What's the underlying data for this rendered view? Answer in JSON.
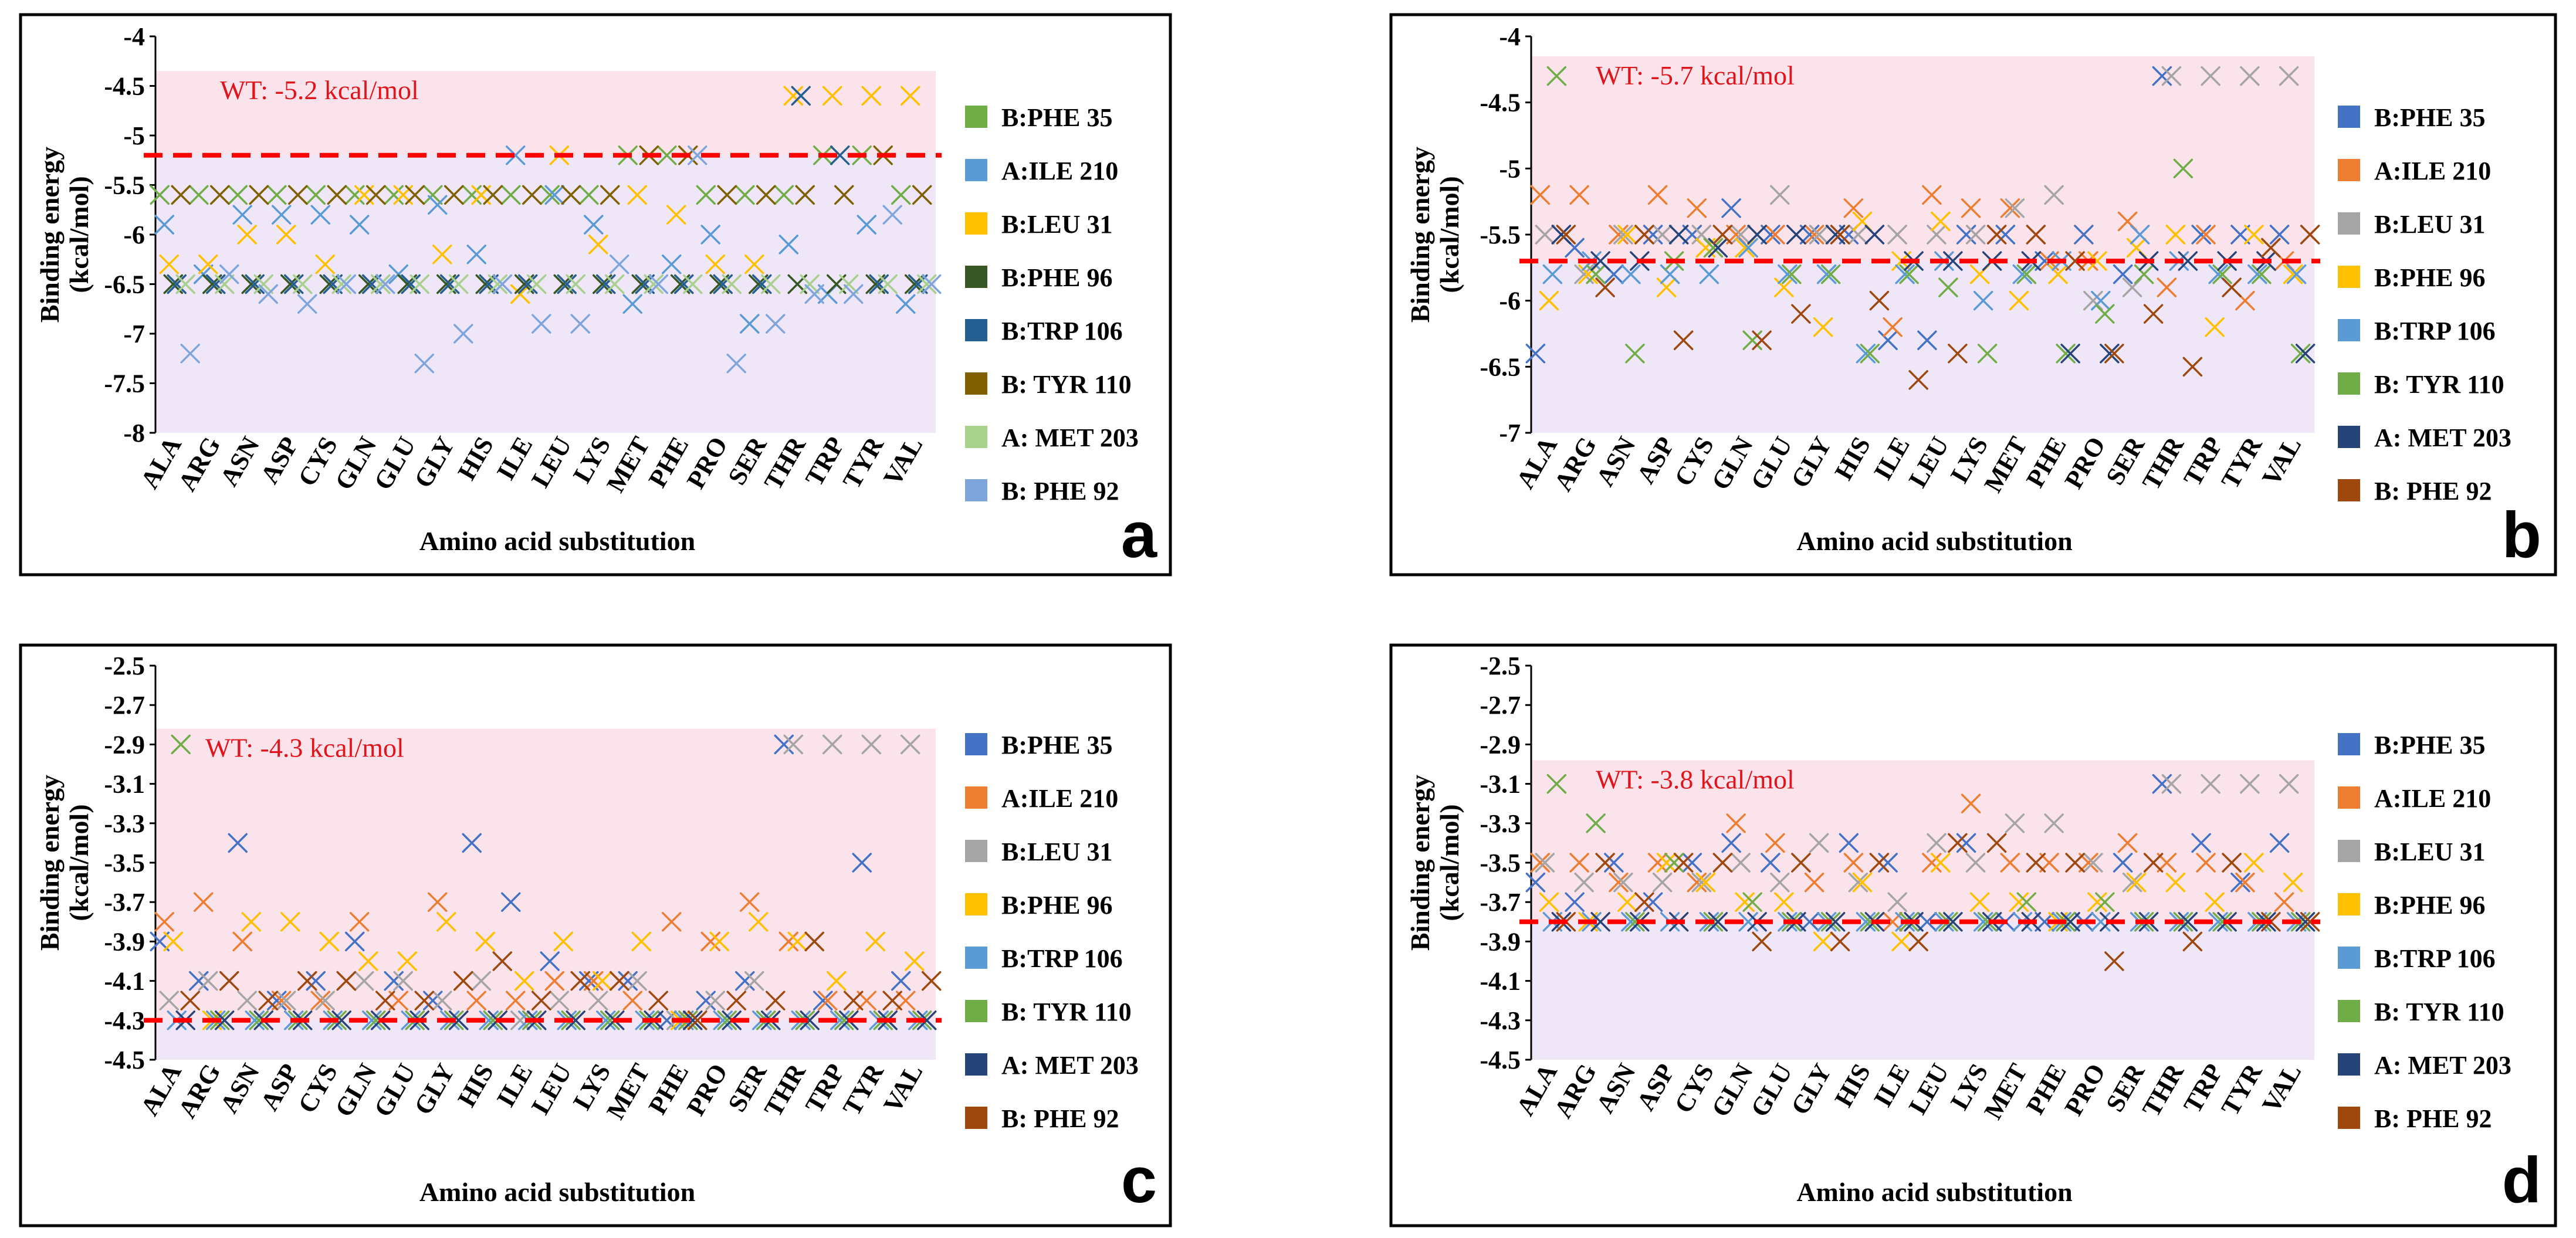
{
  "colors": {
    "band_upper": "#fbe3ec",
    "band_lower": "#efe6f8",
    "wt_line": "#ff0000",
    "wt_text": "#e0141b"
  },
  "series_styles": {
    "set1": [
      "#70ad47",
      "#5b9bd5",
      "#ffc000",
      "#375623",
      "#255e91",
      "#806000",
      "#a9d18e",
      "#7fa6dc"
    ],
    "set2": [
      "#4472c4",
      "#ed7d31",
      "#a5a5a5",
      "#ffc000",
      "#5b9bd5",
      "#70ad47",
      "#264478",
      "#9e480e"
    ]
  },
  "chart_data": [
    {
      "id": "a",
      "type": "scatter",
      "panel_label": "a",
      "xlabel": "Amino acid substitution",
      "ylabel": [
        "Binding energy",
        "(kcal/mol)"
      ],
      "ylim": [
        -8,
        -4
      ],
      "yticks": [
        -4,
        -4.5,
        -5,
        -5.5,
        -6,
        -6.5,
        -7,
        -7.5,
        -8
      ],
      "wt_value": -5.2,
      "wt_label": "WT: -5.2 kcal/mol",
      "band_upper": [
        -5.2,
        -4.35
      ],
      "band_lower": [
        -8,
        -5.2
      ],
      "palette": "set1",
      "categories": [
        "ALA",
        "ARG",
        "ASN",
        "ASP",
        "CYS",
        "GLN",
        "GLU",
        "GLY",
        "HIS",
        "ILE",
        "LEU",
        "LYS",
        "MET",
        "PHE",
        "PRO",
        "SER",
        "THR",
        "TRP",
        "TYR",
        "VAL"
      ],
      "series": [
        {
          "name": "B:PHE 35",
          "values": [
            -5.6,
            -5.6,
            -5.6,
            -5.6,
            -5.6,
            -5.6,
            -5.6,
            -5.6,
            -5.6,
            -5.6,
            -5.6,
            -5.6,
            -5.2,
            -5.2,
            -5.6,
            -5.6,
            -5.6,
            -5.2,
            -5.2,
            -5.6
          ]
        },
        {
          "name": "A:ILE 210",
          "values": [
            -5.9,
            -6.4,
            -5.8,
            -5.8,
            -5.8,
            -5.9,
            -6.4,
            -5.7,
            -6.2,
            -5.2,
            -5.6,
            -5.9,
            -6.7,
            -6.3,
            -6.0,
            -6.9,
            -6.1,
            -6.6,
            -5.9,
            -6.7
          ]
        },
        {
          "name": "B:LEU 31",
          "values": [
            -6.3,
            -6.3,
            -6.0,
            -6.0,
            -6.3,
            -5.6,
            -5.6,
            -6.2,
            -5.6,
            -6.6,
            -5.2,
            -6.1,
            -5.6,
            -5.8,
            -6.3,
            -6.3,
            -4.6,
            -4.6,
            -4.6,
            -4.6
          ]
        },
        {
          "name": "B:PHE 96",
          "values": [
            -6.5,
            -6.5,
            -6.5,
            -6.5,
            -6.5,
            -6.5,
            -6.5,
            -6.5,
            -6.5,
            -6.5,
            -6.5,
            -6.5,
            -6.5,
            -6.5,
            -6.5,
            -6.5,
            -6.5,
            -6.5,
            -6.5,
            -6.5
          ]
        },
        {
          "name": "B:TRP 106",
          "values": [
            -6.5,
            -6.5,
            -6.5,
            -6.5,
            -6.5,
            -6.5,
            -6.5,
            -6.5,
            -6.5,
            -6.5,
            -6.5,
            -6.5,
            -6.5,
            -6.5,
            -6.5,
            -6.5,
            -4.6,
            -5.2,
            -6.5,
            -6.5
          ]
        },
        {
          "name": "B: TYR 110",
          "values": [
            -5.6,
            -5.6,
            -5.6,
            -5.6,
            -5.6,
            -5.6,
            -5.6,
            -5.6,
            -5.6,
            -5.6,
            -5.6,
            -5.6,
            -5.2,
            -5.2,
            -5.6,
            -5.6,
            -5.6,
            -5.6,
            -5.2,
            -5.6
          ]
        },
        {
          "name": "A: MET 203",
          "values": [
            -6.5,
            -6.5,
            -6.5,
            -6.5,
            -6.5,
            -6.5,
            -6.5,
            -6.5,
            -6.5,
            -6.5,
            -6.5,
            -6.5,
            -6.5,
            -6.5,
            -6.5,
            -6.5,
            -6.5,
            -6.5,
            -6.5,
            -6.5
          ]
        },
        {
          "name": "B: PHE 92",
          "values": [
            -7.2,
            -6.4,
            -6.6,
            -6.7,
            -6.5,
            -6.5,
            -7.3,
            -7.0,
            -6.5,
            -6.9,
            -6.9,
            -6.3,
            -6.5,
            -5.2,
            -7.3,
            -6.9,
            -6.6,
            -6.6,
            -5.8,
            -6.5
          ]
        }
      ]
    },
    {
      "id": "b",
      "type": "scatter",
      "panel_label": "b",
      "xlabel": "Amino acid substitution",
      "ylabel": [
        "Binding energy",
        "(kcal/mol)"
      ],
      "ylim": [
        -7,
        -4
      ],
      "yticks": [
        -4,
        -4.5,
        -5,
        -5.5,
        -6,
        -6.5,
        -7
      ],
      "wt_value": -5.7,
      "wt_label": "WT: -5.7 kcal/mol",
      "band_upper": [
        -5.7,
        -4.15
      ],
      "band_lower": [
        -7,
        -5.7
      ],
      "palette": "set2",
      "categories": [
        "ALA",
        "ARG",
        "ASN",
        "ASP",
        "CYS",
        "GLN",
        "GLU",
        "GLY",
        "HIS",
        "ILE",
        "LEU",
        "LYS",
        "MET",
        "PHE",
        "PRO",
        "SER",
        "THR",
        "TRP",
        "TYR",
        "VAL"
      ],
      "series": [
        {
          "name": "B:PHE 35",
          "values": [
            -6.4,
            -5.6,
            -5.8,
            -5.5,
            -5.5,
            -5.3,
            -5.5,
            -5.5,
            -5.5,
            -6.3,
            -6.3,
            -5.5,
            -5.5,
            -5.7,
            -5.5,
            -5.8,
            -4.3,
            -5.5,
            -5.5,
            -5.5
          ]
        },
        {
          "name": "A:ILE 210",
          "values": [
            -5.2,
            -5.2,
            -5.5,
            -5.2,
            -5.3,
            -5.5,
            -5.5,
            -5.5,
            -5.3,
            -6.2,
            -5.2,
            -5.3,
            -5.3,
            -5.7,
            -5.7,
            -5.4,
            -5.9,
            -5.5,
            -6.0,
            -5.7
          ]
        },
        {
          "name": "B:LEU 31",
          "values": [
            -5.5,
            -5.8,
            -5.5,
            -5.5,
            -5.5,
            -5.5,
            -5.2,
            -5.5,
            -5.5,
            -5.5,
            -5.5,
            -5.5,
            -5.3,
            -5.2,
            -6.0,
            -5.9,
            -4.3,
            -4.3,
            -4.3,
            -4.3
          ]
        },
        {
          "name": "B:PHE 96",
          "values": [
            -6.0,
            -5.8,
            -5.5,
            -5.9,
            -5.6,
            -5.6,
            -5.9,
            -6.2,
            -5.4,
            -5.7,
            -5.4,
            -5.8,
            -6.0,
            -5.8,
            -5.7,
            -5.6,
            -5.5,
            -6.2,
            -5.5,
            -5.8
          ]
        },
        {
          "name": "B:TRP 106",
          "values": [
            -5.8,
            -5.7,
            -5.8,
            -5.8,
            -5.8,
            -5.6,
            -5.8,
            -5.8,
            -6.4,
            -5.8,
            -5.7,
            -6.0,
            -5.8,
            -5.7,
            -6.0,
            -5.5,
            -5.7,
            -5.8,
            -5.8,
            -5.8
          ]
        },
        {
          "name": "B: TYR 110",
          "values": [
            -4.3,
            -5.8,
            -6.4,
            -5.7,
            -5.6,
            -6.3,
            -5.8,
            -5.8,
            -6.4,
            -5.8,
            -5.9,
            -6.4,
            -5.8,
            -6.4,
            -6.1,
            -5.8,
            -5.0,
            -5.8,
            -5.8,
            -6.4
          ]
        },
        {
          "name": "A: MET 203",
          "values": [
            -5.5,
            -5.7,
            -5.7,
            -5.5,
            -5.6,
            -5.5,
            -5.5,
            -5.5,
            -5.5,
            -5.7,
            -5.7,
            -5.7,
            -5.7,
            -6.4,
            -6.4,
            -5.7,
            -5.7,
            -5.7,
            -5.7,
            -6.4
          ]
        },
        {
          "name": "B: PHE 92",
          "values": [
            -5.5,
            -5.9,
            -5.5,
            -6.3,
            -5.5,
            -6.3,
            -6.1,
            -5.5,
            -6.0,
            -6.6,
            -6.4,
            -5.5,
            -5.5,
            -5.7,
            -6.4,
            -6.1,
            -6.5,
            -5.9,
            -5.6,
            -5.5
          ]
        }
      ]
    },
    {
      "id": "c",
      "type": "scatter",
      "panel_label": "c",
      "xlabel": "Amino acid substitution",
      "ylabel": [
        "Binding energy",
        "(kcal/mol)"
      ],
      "ylim": [
        -4.5,
        -2.5
      ],
      "yticks": [
        -2.5,
        -2.7,
        -2.9,
        -3.1,
        -3.3,
        -3.5,
        -3.7,
        -3.9,
        -4.1,
        -4.3,
        -4.5
      ],
      "wt_value": -4.3,
      "wt_label": "WT: -4.3 kcal/mol",
      "band_upper": [
        -4.3,
        -2.82
      ],
      "band_lower": [
        -4.5,
        -4.3
      ],
      "palette": "set2",
      "categories": [
        "ALA",
        "ARG",
        "ASN",
        "ASP",
        "CYS",
        "GLN",
        "GLU",
        "GLY",
        "HIS",
        "ILE",
        "LEU",
        "LYS",
        "MET",
        "PHE",
        "PRO",
        "SER",
        "THR",
        "TRP",
        "TYR",
        "VAL"
      ],
      "series": [
        {
          "name": "B:PHE 35",
          "values": [
            -3.9,
            -4.1,
            -3.4,
            -4.2,
            -4.1,
            -3.9,
            -4.1,
            -4.2,
            -3.4,
            -3.7,
            -4.0,
            -4.1,
            -4.1,
            -4.3,
            -4.2,
            -4.1,
            -2.9,
            -4.2,
            -3.5,
            -4.1
          ]
        },
        {
          "name": "A:ILE 210",
          "values": [
            -3.8,
            -3.7,
            -3.9,
            -4.2,
            -4.2,
            -3.8,
            -4.2,
            -3.7,
            -4.2,
            -4.2,
            -4.1,
            -4.1,
            -4.2,
            -3.8,
            -3.9,
            -3.7,
            -3.9,
            -4.2,
            -4.2,
            -4.2
          ]
        },
        {
          "name": "B:LEU 31",
          "values": [
            -4.2,
            -4.1,
            -4.2,
            -4.2,
            -4.2,
            -4.1,
            -4.1,
            -4.2,
            -4.1,
            -4.3,
            -4.2,
            -4.2,
            -4.1,
            -4.3,
            -4.2,
            -4.1,
            -2.9,
            -2.9,
            -2.9,
            -2.9
          ]
        },
        {
          "name": "B:PHE 96",
          "values": [
            -3.9,
            -4.3,
            -3.8,
            -3.8,
            -3.9,
            -4.0,
            -4.0,
            -3.8,
            -3.9,
            -4.1,
            -3.9,
            -4.1,
            -3.9,
            -4.3,
            -3.9,
            -3.8,
            -3.9,
            -4.1,
            -3.9,
            -4.0
          ]
        },
        {
          "name": "B:TRP 106",
          "values": [
            -4.3,
            -4.3,
            -4.3,
            -4.3,
            -4.3,
            -4.3,
            -4.3,
            -4.3,
            -4.3,
            -4.3,
            -4.3,
            -4.3,
            -4.3,
            -4.3,
            -4.3,
            -4.3,
            -4.3,
            -4.3,
            -4.3,
            -4.3
          ]
        },
        {
          "name": "B: TYR 110",
          "values": [
            -2.9,
            -4.3,
            -4.3,
            -4.3,
            -4.3,
            -4.3,
            -4.3,
            -4.3,
            -4.3,
            -4.3,
            -4.3,
            -4.3,
            -4.3,
            -4.3,
            -4.3,
            -4.3,
            -4.3,
            -4.3,
            -4.3,
            -4.3
          ]
        },
        {
          "name": "A: MET 203",
          "values": [
            -4.3,
            -4.3,
            -4.3,
            -4.3,
            -4.3,
            -4.3,
            -4.3,
            -4.3,
            -4.3,
            -4.3,
            -4.3,
            -4.3,
            -4.3,
            -4.3,
            -4.3,
            -4.3,
            -4.3,
            -4.3,
            -4.3,
            -4.3
          ]
        },
        {
          "name": "B: PHE 92",
          "values": [
            -4.2,
            -4.1,
            -4.2,
            -4.1,
            -4.1,
            -4.2,
            -4.2,
            -4.1,
            -4.0,
            -4.2,
            -4.1,
            -4.1,
            -4.2,
            -4.3,
            -4.2,
            -4.2,
            -3.9,
            -4.2,
            -4.2,
            -4.1
          ]
        }
      ]
    },
    {
      "id": "d",
      "type": "scatter",
      "panel_label": "d",
      "xlabel": "Amino acid substitution",
      "ylabel": [
        "Binding energy",
        "(kcal/mol)"
      ],
      "ylim": [
        -4.5,
        -2.5
      ],
      "yticks": [
        -2.5,
        -2.7,
        -2.9,
        -3.1,
        -3.3,
        -3.5,
        -3.7,
        -3.9,
        -4.1,
        -4.3,
        -4.5
      ],
      "wt_value": -3.8,
      "wt_label": "WT: -3.8 kcal/mol",
      "band_upper": [
        -3.8,
        -2.98
      ],
      "band_lower": [
        -4.5,
        -3.8
      ],
      "palette": "set2",
      "categories": [
        "ALA",
        "ARG",
        "ASN",
        "ASP",
        "CYS",
        "GLN",
        "GLU",
        "GLY",
        "HIS",
        "ILE",
        "LEU",
        "LYS",
        "MET",
        "PHE",
        "PRO",
        "SER",
        "THR",
        "TRP",
        "TYR",
        "VAL"
      ],
      "series": [
        {
          "name": "B:PHE 35",
          "values": [
            -3.6,
            -3.7,
            -3.5,
            -3.7,
            -3.5,
            -3.4,
            -3.5,
            -3.8,
            -3.4,
            -3.5,
            -3.8,
            -3.4,
            -3.8,
            -3.8,
            -3.8,
            -3.5,
            -3.1,
            -3.4,
            -3.6,
            -3.4
          ]
        },
        {
          "name": "A:ILE 210",
          "values": [
            -3.5,
            -3.5,
            -3.6,
            -3.5,
            -3.6,
            -3.3,
            -3.4,
            -3.6,
            -3.5,
            -3.8,
            -3.5,
            -3.2,
            -3.5,
            -3.5,
            -3.5,
            -3.4,
            -3.5,
            -3.5,
            -3.6,
            -3.7
          ]
        },
        {
          "name": "B:LEU 31",
          "values": [
            -3.5,
            -3.6,
            -3.6,
            -3.6,
            -3.6,
            -3.5,
            -3.6,
            -3.4,
            -3.6,
            -3.7,
            -3.4,
            -3.5,
            -3.3,
            -3.3,
            -3.5,
            -3.6,
            -3.1,
            -3.1,
            -3.1,
            -3.1
          ]
        },
        {
          "name": "B:PHE 96",
          "values": [
            -3.7,
            -3.8,
            -3.7,
            -3.5,
            -3.6,
            -3.7,
            -3.7,
            -3.9,
            -3.6,
            -3.9,
            -3.5,
            -3.7,
            -3.7,
            -3.8,
            -3.7,
            -3.6,
            -3.6,
            -3.7,
            -3.5,
            -3.6
          ]
        },
        {
          "name": "B:TRP 106",
          "values": [
            -3.8,
            -3.8,
            -3.8,
            -3.8,
            -3.8,
            -3.8,
            -3.8,
            -3.8,
            -3.8,
            -3.8,
            -3.8,
            -3.8,
            -3.8,
            -3.8,
            -3.8,
            -3.8,
            -3.8,
            -3.8,
            -3.8,
            -3.8
          ]
        },
        {
          "name": "B: TYR 110",
          "values": [
            -3.1,
            -3.3,
            -3.8,
            -3.5,
            -3.8,
            -3.7,
            -3.8,
            -3.8,
            -3.8,
            -3.8,
            -3.8,
            -3.8,
            -3.7,
            -3.8,
            -3.7,
            -3.8,
            -3.8,
            -3.8,
            -3.8,
            -3.8
          ]
        },
        {
          "name": "A: MET 203",
          "values": [
            -3.8,
            -3.8,
            -3.8,
            -3.8,
            -3.8,
            -3.8,
            -3.8,
            -3.8,
            -3.8,
            -3.8,
            -3.8,
            -3.8,
            -3.8,
            -3.8,
            -3.8,
            -3.8,
            -3.8,
            -3.8,
            -3.8,
            -3.8
          ]
        },
        {
          "name": "B: PHE 92",
          "values": [
            -3.8,
            -3.5,
            -3.7,
            -3.5,
            -3.5,
            -3.9,
            -3.5,
            -3.9,
            -3.5,
            -3.9,
            -3.4,
            -3.4,
            -3.5,
            -3.5,
            -4.0,
            -3.5,
            -3.9,
            -3.5,
            -3.8,
            -3.8
          ]
        }
      ]
    }
  ]
}
